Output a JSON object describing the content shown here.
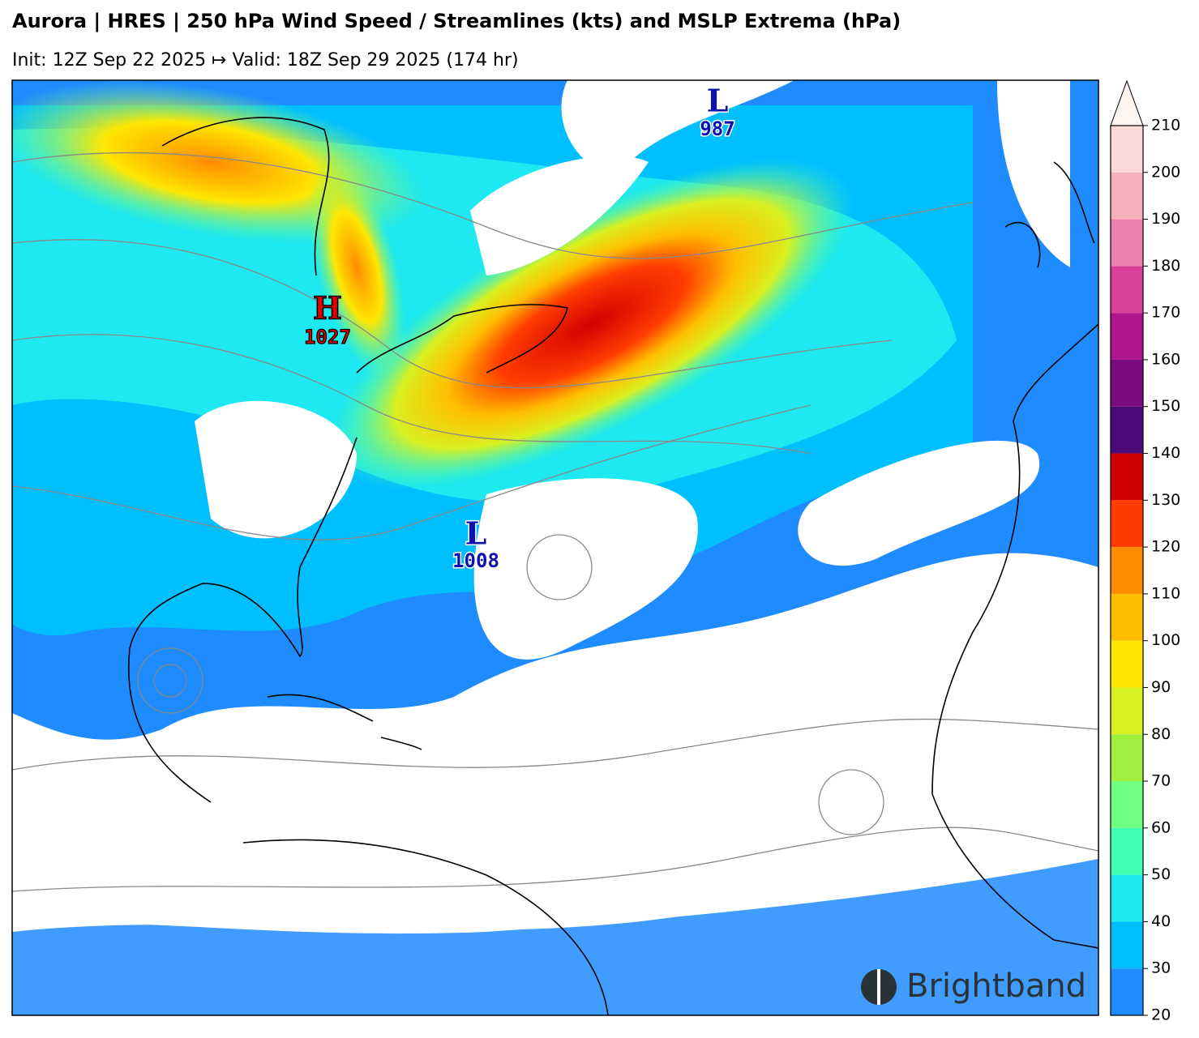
{
  "header": {
    "title": "Aurora | HRES | 250 hPa Wind Speed / Streamlines (kts) and MSLP Extrema (hPa)",
    "subtitle": "Init: 12Z Sep 22 2025 ↦ Valid: 18Z Sep 29 2025 (174 hr)"
  },
  "extrema": [
    {
      "letter": "H",
      "value": 1027
    },
    {
      "letter": "L",
      "value": 987
    },
    {
      "letter": "L",
      "value": 1008
    }
  ],
  "colorbar": {
    "range": [
      20,
      210
    ],
    "ticks": [
      20,
      30,
      40,
      50,
      60,
      70,
      80,
      90,
      100,
      110,
      120,
      130,
      140,
      150,
      160,
      170,
      180,
      190,
      200,
      210
    ],
    "colors": [
      "#1e8cff",
      "#00bfff",
      "#1ee8f0",
      "#40ffb0",
      "#70ff80",
      "#a0f040",
      "#d8f020",
      "#ffe600",
      "#ffbf00",
      "#ff8c00",
      "#ff3c00",
      "#d20000",
      "#4a0a78",
      "#7a0a80",
      "#b0168c",
      "#d8409c",
      "#ee80b0",
      "#f6b0bc",
      "#fcd8d8"
    ],
    "extend_color": "#fff5f0"
  },
  "brand": "Brightband"
}
